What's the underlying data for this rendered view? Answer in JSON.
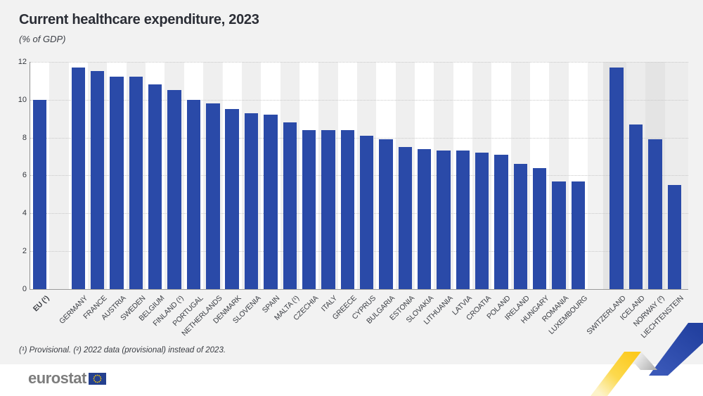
{
  "title": "Current healthcare expenditure, 2023",
  "subtitle": "(% of GDP)",
  "footnote": "(¹) Provisional. (²) 2022 data (provisional) instead of 2023.",
  "logo": {
    "text": "eurostat",
    "flag_icon": "eu-flag-icon"
  },
  "colors": {
    "bar": "#2a4aa8",
    "page_bg": "#f2f2f2",
    "stripe_white": "#ffffff",
    "stripe_gray": "#efefef",
    "efta_stripe_dark": "#e4e4e4",
    "efta_stripe_light": "#ececec",
    "grid": "#c8c8c8",
    "axis": "#8f8f8f",
    "title_text": "#2b2e36",
    "label_text": "#3a3d43",
    "logo_text": "#7d7d7d",
    "ribbon_yellow": "#fcca1e",
    "ribbon_blue": "#2746a6",
    "flag_blue": "#24408f",
    "flag_stars": "#ffcc00"
  },
  "chart_data": {
    "type": "bar",
    "title": "Current healthcare expenditure, 2023",
    "xlabel": "",
    "ylabel": "(% of GDP)",
    "ylim": [
      0,
      12
    ],
    "y_ticks": [
      0,
      2,
      4,
      6,
      8,
      10,
      12
    ],
    "grid": "horizontal-dotted",
    "legend": "none",
    "bars": [
      {
        "label": "EU (¹)",
        "value": 10.0,
        "group": "eu-aggregate",
        "bold": true
      },
      {
        "label": "GERMANY",
        "value": 11.7,
        "group": "eu"
      },
      {
        "label": "FRANCE",
        "value": 11.5,
        "group": "eu"
      },
      {
        "label": "AUSTRIA",
        "value": 11.2,
        "group": "eu"
      },
      {
        "label": "SWEDEN",
        "value": 11.2,
        "group": "eu"
      },
      {
        "label": "BELGIUM",
        "value": 10.8,
        "group": "eu"
      },
      {
        "label": "FINLAND (¹)",
        "value": 10.5,
        "group": "eu"
      },
      {
        "label": "PORTUGAL",
        "value": 10.0,
        "group": "eu"
      },
      {
        "label": "NETHERLANDS",
        "value": 9.8,
        "group": "eu"
      },
      {
        "label": "DENMARK",
        "value": 9.5,
        "group": "eu"
      },
      {
        "label": "SLOVENIA",
        "value": 9.3,
        "group": "eu"
      },
      {
        "label": "SPAIN",
        "value": 9.2,
        "group": "eu"
      },
      {
        "label": "MALTA (¹)",
        "value": 8.8,
        "group": "eu"
      },
      {
        "label": "CZECHIA",
        "value": 8.4,
        "group": "eu"
      },
      {
        "label": "ITALY",
        "value": 8.4,
        "group": "eu"
      },
      {
        "label": "GREECE",
        "value": 8.4,
        "group": "eu"
      },
      {
        "label": "CYPRUS",
        "value": 8.1,
        "group": "eu"
      },
      {
        "label": "BULGARIA",
        "value": 7.9,
        "group": "eu"
      },
      {
        "label": "ESTONIA",
        "value": 7.5,
        "group": "eu"
      },
      {
        "label": "SLOVAKIA",
        "value": 7.4,
        "group": "eu"
      },
      {
        "label": "LITHUANIA",
        "value": 7.3,
        "group": "eu"
      },
      {
        "label": "LATVIA",
        "value": 7.3,
        "group": "eu"
      },
      {
        "label": "CROATIA",
        "value": 7.2,
        "group": "eu"
      },
      {
        "label": "POLAND",
        "value": 7.1,
        "group": "eu"
      },
      {
        "label": "IRELAND",
        "value": 6.6,
        "group": "eu"
      },
      {
        "label": "HUNGARY",
        "value": 6.4,
        "group": "eu"
      },
      {
        "label": "ROMANIA",
        "value": 5.7,
        "group": "eu"
      },
      {
        "label": "LUXEMBOURG",
        "value": 5.7,
        "group": "eu"
      },
      {
        "label": "SWITZERLAND",
        "value": 11.7,
        "group": "efta"
      },
      {
        "label": "ICELAND",
        "value": 8.7,
        "group": "efta"
      },
      {
        "label": "NORWAY (²)",
        "value": 7.9,
        "group": "efta"
      },
      {
        "label": "LIECHTENSTEIN",
        "value": 5.5,
        "group": "efta"
      }
    ]
  }
}
